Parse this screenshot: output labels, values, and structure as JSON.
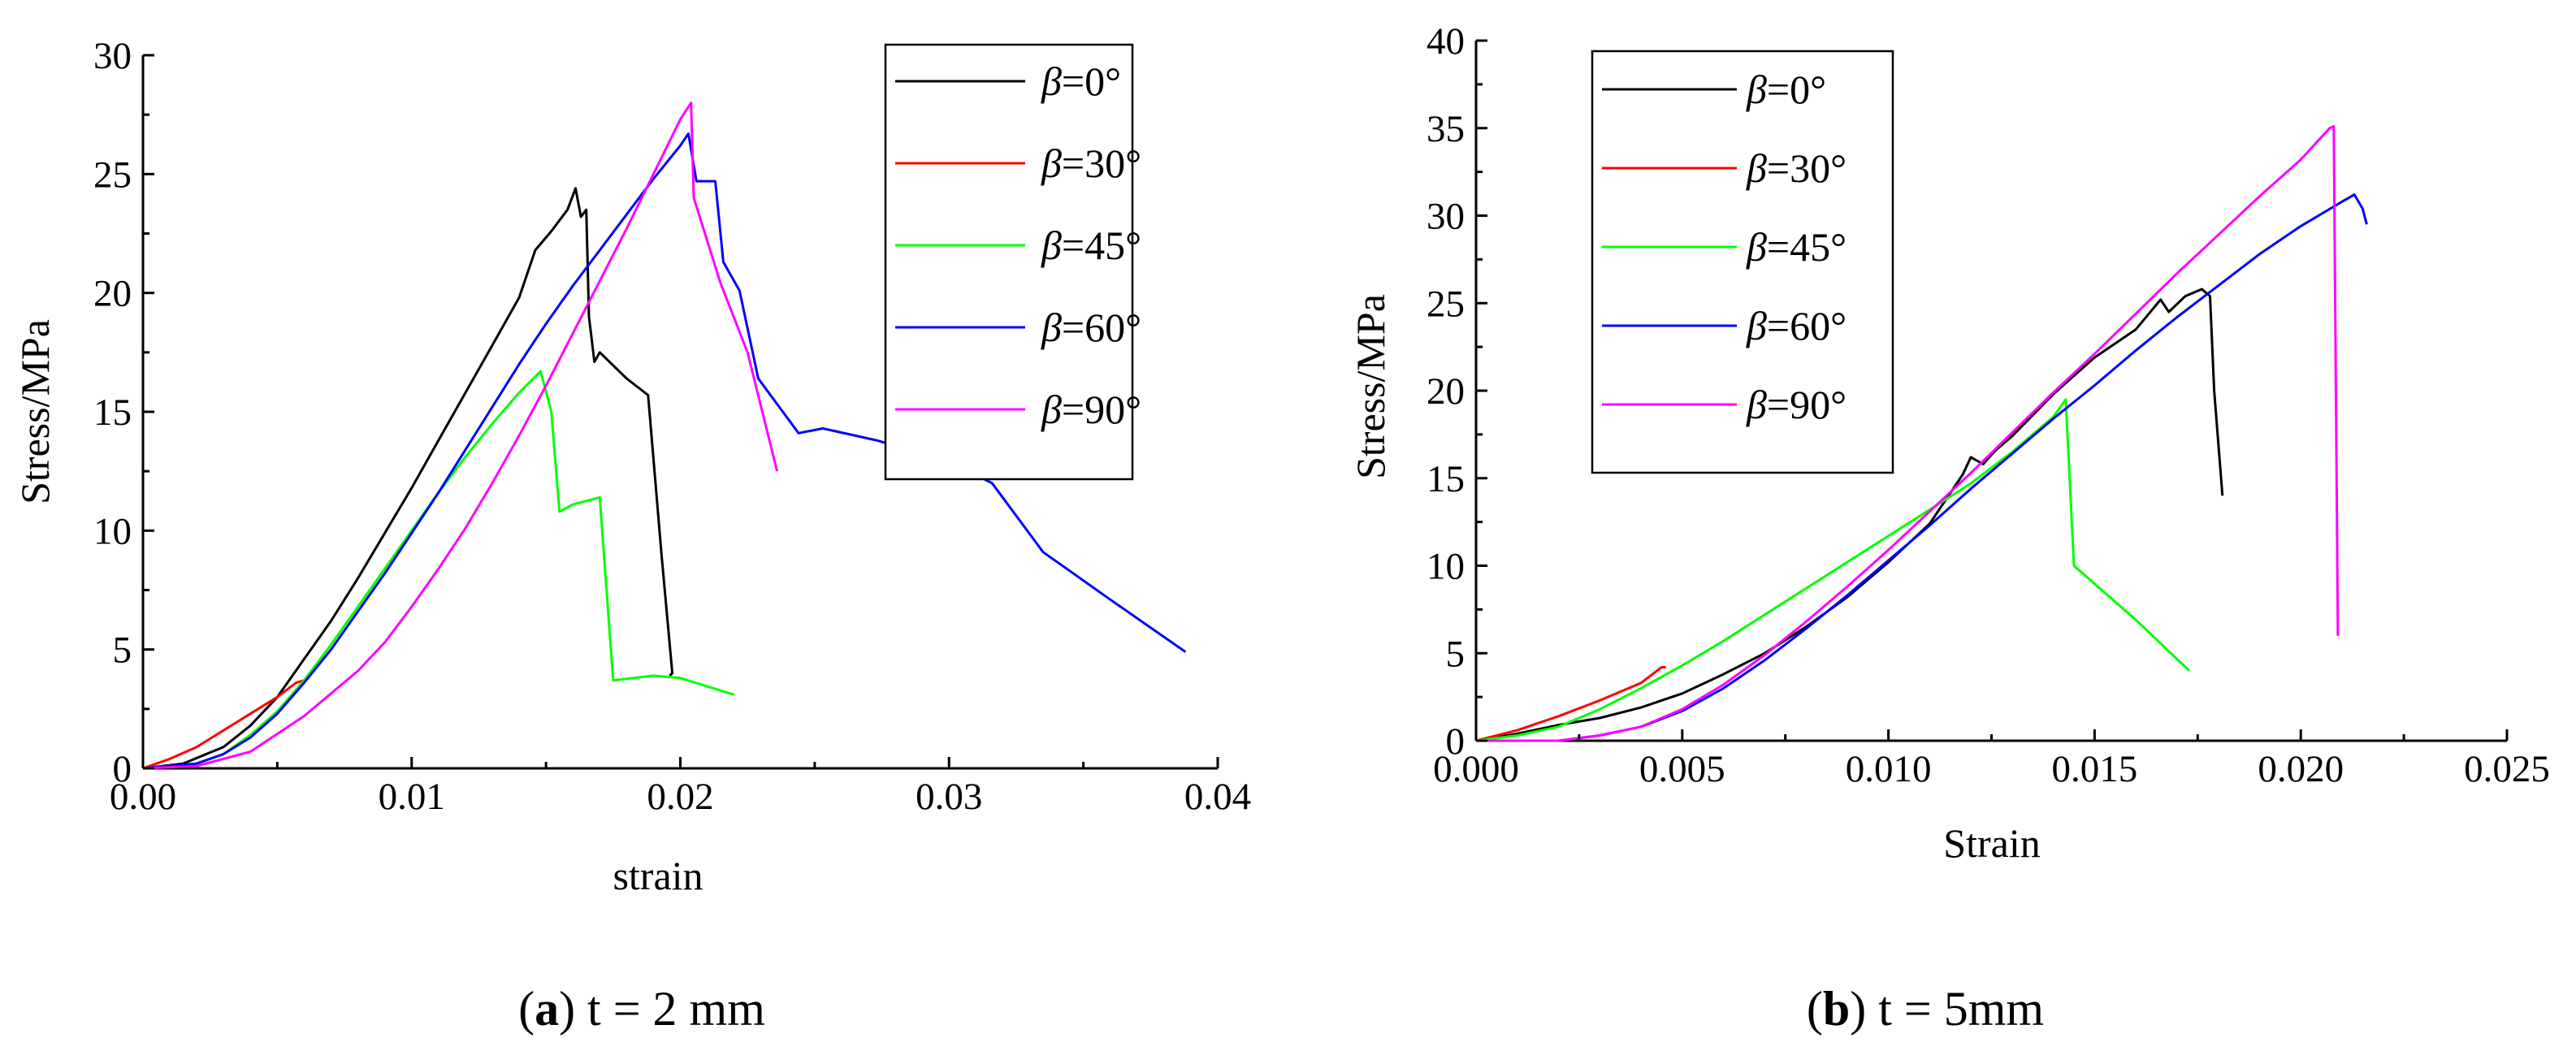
{
  "chart_data": [
    {
      "type": "line",
      "xlabel": "strain",
      "ylabel": "Stress/MPa",
      "xlim": [
        0,
        0.04
      ],
      "ylim": [
        0,
        30
      ],
      "xticks": [
        "0.00",
        "0.01",
        "0.02",
        "0.03",
        "0.04"
      ],
      "yticks": [
        "0",
        "5",
        "10",
        "15",
        "20",
        "25",
        "30"
      ],
      "legend_position": "top-right",
      "caption": {
        "letter": "a",
        "text": " t = 2 mm"
      },
      "grid": false,
      "series": [
        {
          "name": "β=0°",
          "color": "#000000",
          "points": [
            [
              0.0,
              0.0
            ],
            [
              0.0015,
              0.2
            ],
            [
              0.003,
              0.9
            ],
            [
              0.004,
              1.8
            ],
            [
              0.005,
              3.0
            ],
            [
              0.006,
              4.6
            ],
            [
              0.007,
              6.2
            ],
            [
              0.008,
              8.0
            ],
            [
              0.009,
              9.9
            ],
            [
              0.01,
              11.8
            ],
            [
              0.011,
              13.8
            ],
            [
              0.012,
              15.8
            ],
            [
              0.013,
              17.8
            ],
            [
              0.014,
              19.8
            ],
            [
              0.0146,
              21.8
            ],
            [
              0.0152,
              22.6
            ],
            [
              0.0158,
              23.5
            ],
            [
              0.0161,
              24.4
            ],
            [
              0.0163,
              23.2
            ],
            [
              0.0165,
              23.5
            ],
            [
              0.0166,
              19.0
            ],
            [
              0.0168,
              17.1
            ],
            [
              0.017,
              17.5
            ],
            [
              0.018,
              16.4
            ],
            [
              0.0188,
              15.7
            ],
            [
              0.0193,
              9.0
            ],
            [
              0.0197,
              4.0
            ],
            [
              0.0196,
              3.9
            ]
          ]
        },
        {
          "name": "β=30°",
          "color": "#ff0000",
          "points": [
            [
              0.0,
              0.0
            ],
            [
              0.001,
              0.4
            ],
            [
              0.002,
              0.9
            ],
            [
              0.003,
              1.6
            ],
            [
              0.004,
              2.3
            ],
            [
              0.005,
              3.0
            ],
            [
              0.0057,
              3.6
            ],
            [
              0.006,
              3.7
            ]
          ]
        },
        {
          "name": "β=45°",
          "color": "#00ff00",
          "points": [
            [
              0.0,
              0.0
            ],
            [
              0.002,
              0.2
            ],
            [
              0.003,
              0.6
            ],
            [
              0.004,
              1.4
            ],
            [
              0.005,
              2.4
            ],
            [
              0.006,
              3.7
            ],
            [
              0.007,
              5.2
            ],
            [
              0.008,
              6.8
            ],
            [
              0.009,
              8.4
            ],
            [
              0.01,
              10.0
            ],
            [
              0.011,
              11.6
            ],
            [
              0.012,
              13.1
            ],
            [
              0.013,
              14.5
            ],
            [
              0.014,
              15.8
            ],
            [
              0.0148,
              16.7
            ],
            [
              0.0152,
              15.0
            ],
            [
              0.0155,
              10.8
            ],
            [
              0.016,
              11.1
            ],
            [
              0.017,
              11.4
            ],
            [
              0.0175,
              3.7
            ],
            [
              0.019,
              3.9
            ],
            [
              0.02,
              3.8
            ],
            [
              0.022,
              3.1
            ]
          ]
        },
        {
          "name": "β=60°",
          "color": "#0000ff",
          "points": [
            [
              0.0,
              0.0
            ],
            [
              0.002,
              0.2
            ],
            [
              0.003,
              0.6
            ],
            [
              0.004,
              1.3
            ],
            [
              0.005,
              2.3
            ],
            [
              0.006,
              3.6
            ],
            [
              0.007,
              5.0
            ],
            [
              0.008,
              6.6
            ],
            [
              0.009,
              8.2
            ],
            [
              0.01,
              9.9
            ],
            [
              0.011,
              11.6
            ],
            [
              0.012,
              13.4
            ],
            [
              0.013,
              15.2
            ],
            [
              0.014,
              17.0
            ],
            [
              0.015,
              18.7
            ],
            [
              0.016,
              20.3
            ],
            [
              0.017,
              21.8
            ],
            [
              0.018,
              23.3
            ],
            [
              0.019,
              24.8
            ],
            [
              0.02,
              26.2
            ],
            [
              0.0203,
              26.7
            ],
            [
              0.0206,
              24.7
            ],
            [
              0.0213,
              24.7
            ],
            [
              0.0216,
              21.3
            ],
            [
              0.0222,
              20.1
            ],
            [
              0.0229,
              16.4
            ],
            [
              0.0244,
              14.1
            ],
            [
              0.0253,
              14.3
            ],
            [
              0.0273,
              13.8
            ],
            [
              0.03,
              12.9
            ],
            [
              0.0316,
              12.0
            ],
            [
              0.0335,
              9.1
            ],
            [
              0.036,
              7.1
            ],
            [
              0.0388,
              4.9
            ]
          ]
        },
        {
          "name": "β=90°",
          "color": "#ff00ff",
          "points": [
            [
              0.0,
              0.0
            ],
            [
              0.002,
              0.1
            ],
            [
              0.004,
              0.7
            ],
            [
              0.006,
              2.2
            ],
            [
              0.008,
              4.1
            ],
            [
              0.009,
              5.3
            ],
            [
              0.01,
              6.8
            ],
            [
              0.011,
              8.4
            ],
            [
              0.012,
              10.1
            ],
            [
              0.013,
              12.0
            ],
            [
              0.014,
              14.0
            ],
            [
              0.015,
              16.1
            ],
            [
              0.016,
              18.3
            ],
            [
              0.017,
              20.5
            ],
            [
              0.018,
              22.7
            ],
            [
              0.019,
              25.0
            ],
            [
              0.02,
              27.3
            ],
            [
              0.0204,
              28.0
            ],
            [
              0.0205,
              24.0
            ],
            [
              0.0215,
              20.4
            ],
            [
              0.0225,
              17.5
            ],
            [
              0.0236,
              12.5
            ]
          ]
        }
      ]
    },
    {
      "type": "line",
      "xlabel": "Strain",
      "ylabel": "Stress/MPa",
      "xlim": [
        0,
        0.025
      ],
      "ylim": [
        0,
        40
      ],
      "xticks": [
        "0.000",
        "0.005",
        "0.010",
        "0.015",
        "0.020",
        "0.025"
      ],
      "yticks": [
        "0",
        "5",
        "10",
        "15",
        "20",
        "25",
        "30",
        "35",
        "40"
      ],
      "legend_position": "top-left",
      "caption": {
        "letter": "b",
        "text": " t = 5mm"
      },
      "grid": false,
      "series": [
        {
          "name": "β=0°",
          "color": "#000000",
          "points": [
            [
              0.0,
              0.0
            ],
            [
              0.001,
              0.4
            ],
            [
              0.002,
              0.9
            ],
            [
              0.003,
              1.3
            ],
            [
              0.004,
              1.9
            ],
            [
              0.005,
              2.7
            ],
            [
              0.006,
              3.8
            ],
            [
              0.007,
              5.0
            ],
            [
              0.008,
              6.5
            ],
            [
              0.009,
              8.2
            ],
            [
              0.01,
              10.2
            ],
            [
              0.011,
              12.4
            ],
            [
              0.0118,
              15.2
            ],
            [
              0.012,
              16.2
            ],
            [
              0.0123,
              15.8
            ],
            [
              0.0126,
              16.6
            ],
            [
              0.013,
              17.4
            ],
            [
              0.014,
              19.8
            ],
            [
              0.015,
              21.9
            ],
            [
              0.016,
              23.5
            ],
            [
              0.0166,
              25.2
            ],
            [
              0.0168,
              24.5
            ],
            [
              0.0172,
              25.4
            ],
            [
              0.0176,
              25.8
            ],
            [
              0.0178,
              25.4
            ],
            [
              0.0179,
              20.0
            ],
            [
              0.0181,
              14.0
            ]
          ]
        },
        {
          "name": "β=30°",
          "color": "#ff0000",
          "points": [
            [
              0.0,
              0.0
            ],
            [
              0.001,
              0.6
            ],
            [
              0.002,
              1.4
            ],
            [
              0.003,
              2.3
            ],
            [
              0.004,
              3.3
            ],
            [
              0.0045,
              4.2
            ],
            [
              0.0046,
              4.2
            ]
          ]
        },
        {
          "name": "β=45°",
          "color": "#00ff00",
          "points": [
            [
              0.0,
              0.0
            ],
            [
              0.001,
              0.3
            ],
            [
              0.002,
              0.8
            ],
            [
              0.003,
              1.8
            ],
            [
              0.004,
              3.0
            ],
            [
              0.005,
              4.3
            ],
            [
              0.006,
              5.7
            ],
            [
              0.007,
              7.2
            ],
            [
              0.008,
              8.7
            ],
            [
              0.009,
              10.2
            ],
            [
              0.01,
              11.7
            ],
            [
              0.011,
              13.2
            ],
            [
              0.012,
              14.7
            ],
            [
              0.013,
              16.5
            ],
            [
              0.014,
              18.5
            ],
            [
              0.0143,
              19.5
            ],
            [
              0.0145,
              10.0
            ],
            [
              0.016,
              6.9
            ],
            [
              0.0173,
              4.0
            ]
          ]
        },
        {
          "name": "β=60°",
          "color": "#0000ff",
          "points": [
            [
              0.0,
              0.0
            ],
            [
              0.002,
              0.0
            ],
            [
              0.003,
              0.3
            ],
            [
              0.004,
              0.8
            ],
            [
              0.005,
              1.7
            ],
            [
              0.006,
              3.0
            ],
            [
              0.007,
              4.6
            ],
            [
              0.008,
              6.4
            ],
            [
              0.009,
              8.3
            ],
            [
              0.01,
              10.3
            ],
            [
              0.011,
              12.3
            ],
            [
              0.012,
              14.4
            ],
            [
              0.013,
              16.4
            ],
            [
              0.014,
              18.4
            ],
            [
              0.015,
              20.3
            ],
            [
              0.016,
              22.3
            ],
            [
              0.017,
              24.2
            ],
            [
              0.018,
              26.0
            ],
            [
              0.019,
              27.8
            ],
            [
              0.02,
              29.4
            ],
            [
              0.021,
              30.8
            ],
            [
              0.0213,
              31.2
            ],
            [
              0.0215,
              30.4
            ],
            [
              0.0216,
              29.5
            ]
          ]
        },
        {
          "name": "β=90°",
          "color": "#ff00ff",
          "points": [
            [
              0.0,
              0.0
            ],
            [
              0.002,
              0.0
            ],
            [
              0.003,
              0.3
            ],
            [
              0.004,
              0.8
            ],
            [
              0.005,
              1.8
            ],
            [
              0.006,
              3.2
            ],
            [
              0.007,
              4.9
            ],
            [
              0.008,
              6.8
            ],
            [
              0.009,
              8.8
            ],
            [
              0.01,
              10.9
            ],
            [
              0.011,
              13.1
            ],
            [
              0.012,
              15.3
            ],
            [
              0.013,
              17.6
            ],
            [
              0.014,
              19.9
            ],
            [
              0.015,
              22.1
            ],
            [
              0.016,
              24.4
            ],
            [
              0.017,
              26.7
            ],
            [
              0.018,
              28.9
            ],
            [
              0.019,
              31.1
            ],
            [
              0.02,
              33.2
            ],
            [
              0.0207,
              35.0
            ],
            [
              0.0208,
              35.1
            ],
            [
              0.0209,
              6.0
            ]
          ]
        }
      ]
    }
  ]
}
